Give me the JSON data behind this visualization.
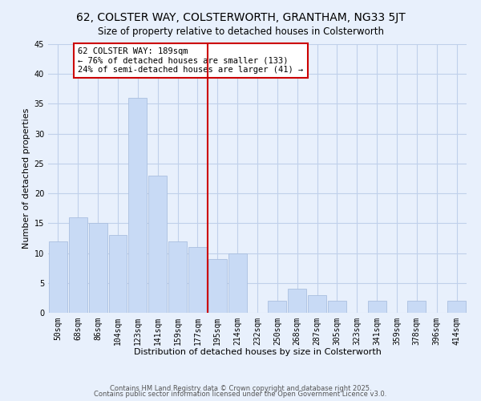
{
  "title": "62, COLSTER WAY, COLSTERWORTH, GRANTHAM, NG33 5JT",
  "subtitle": "Size of property relative to detached houses in Colsterworth",
  "xlabel": "Distribution of detached houses by size in Colsterworth",
  "ylabel": "Number of detached properties",
  "categories": [
    "50sqm",
    "68sqm",
    "86sqm",
    "104sqm",
    "123sqm",
    "141sqm",
    "159sqm",
    "177sqm",
    "195sqm",
    "214sqm",
    "232sqm",
    "250sqm",
    "268sqm",
    "287sqm",
    "305sqm",
    "323sqm",
    "341sqm",
    "359sqm",
    "378sqm",
    "396sqm",
    "414sqm"
  ],
  "values": [
    12,
    16,
    15,
    13,
    36,
    23,
    12,
    11,
    9,
    10,
    0,
    2,
    4,
    3,
    2,
    0,
    2,
    0,
    2,
    0,
    2
  ],
  "bar_color": "#c8daf5",
  "bar_edge_color": "#aabfdf",
  "grid_color": "#c0d0ea",
  "vline_color": "#cc0000",
  "annotation_text": "62 COLSTER WAY: 189sqm\n← 76% of detached houses are smaller (133)\n24% of semi-detached houses are larger (41) →",
  "annotation_box_color": "#ffffff",
  "annotation_box_edge": "#cc0000",
  "ylim": [
    0,
    45
  ],
  "yticks": [
    0,
    5,
    10,
    15,
    20,
    25,
    30,
    35,
    40,
    45
  ],
  "footer1": "Contains HM Land Registry data © Crown copyright and database right 2025.",
  "footer2": "Contains public sector information licensed under the Open Government Licence v3.0.",
  "bg_color": "#e8f0fc",
  "title_fontsize": 10,
  "subtitle_fontsize": 8.5,
  "axis_label_fontsize": 8,
  "tick_fontsize": 7,
  "annotation_fontsize": 7.5,
  "footer_fontsize": 6
}
